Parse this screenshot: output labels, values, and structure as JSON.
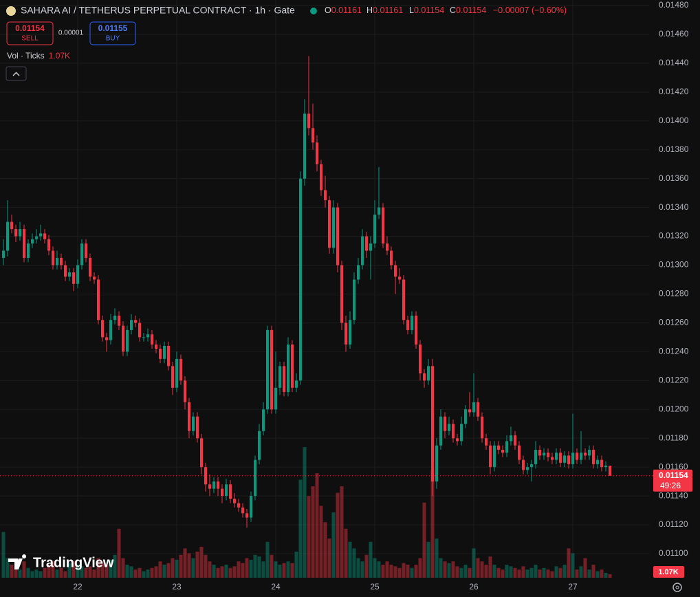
{
  "chart_data": {
    "type": "candlestick",
    "title": "SAHARA AI / TETHERUS PERPETUAL CONTRACT · 1h · Gate",
    "ohlc_keys": [
      "O",
      "H",
      "L",
      "C"
    ],
    "change": "−0.00007 (−0.60%)",
    "volume_title": "Vol · Ticks",
    "volume_label": "1.07K",
    "last_price": {
      "value": 0.01154,
      "label": "0.01154"
    },
    "countdown": "49:26",
    "up_color": "#089981",
    "down_color": "#f23645",
    "grid": true,
    "ylim": [
      0.010833,
      0.014838
    ],
    "yticks": [
      {
        "value": 0.0148,
        "label": "0.01480"
      },
      {
        "value": 0.0146,
        "label": "0.01460"
      },
      {
        "value": 0.0144,
        "label": "0.01440"
      },
      {
        "value": 0.0142,
        "label": "0.01420"
      },
      {
        "value": 0.014,
        "label": "0.01400"
      },
      {
        "value": 0.0138,
        "label": "0.01380"
      },
      {
        "value": 0.0136,
        "label": "0.01360"
      },
      {
        "value": 0.0134,
        "label": "0.01340"
      },
      {
        "value": 0.0132,
        "label": "0.01320"
      },
      {
        "value": 0.013,
        "label": "0.01300"
      },
      {
        "value": 0.0128,
        "label": "0.01280"
      },
      {
        "value": 0.0126,
        "label": "0.01260"
      },
      {
        "value": 0.0124,
        "label": "0.01240"
      },
      {
        "value": 0.0122,
        "label": "0.01220"
      },
      {
        "value": 0.012,
        "label": "0.01200"
      },
      {
        "value": 0.0118,
        "label": "0.01180"
      },
      {
        "value": 0.0116,
        "label": "0.01160"
      },
      {
        "value": 0.0114,
        "label": "0.01140"
      },
      {
        "value": 0.0112,
        "label": "0.01120"
      },
      {
        "value": 0.011,
        "label": "0.01100"
      }
    ],
    "categories": [
      null,
      null,
      null,
      null,
      null,
      null,
      null,
      null,
      null,
      null,
      null,
      null,
      null,
      null,
      null,
      null,
      null,
      null,
      "22",
      null,
      null,
      null,
      null,
      null,
      null,
      null,
      null,
      null,
      null,
      null,
      null,
      null,
      null,
      null,
      null,
      null,
      null,
      null,
      null,
      null,
      null,
      null,
      "23",
      null,
      null,
      null,
      null,
      null,
      null,
      null,
      null,
      null,
      null,
      null,
      null,
      null,
      null,
      null,
      null,
      null,
      null,
      null,
      null,
      null,
      null,
      null,
      "24",
      null,
      null,
      null,
      null,
      null,
      null,
      null,
      null,
      null,
      null,
      null,
      null,
      null,
      null,
      null,
      null,
      null,
      null,
      null,
      null,
      null,
      null,
      null,
      "25",
      null,
      null,
      null,
      null,
      null,
      null,
      null,
      null,
      null,
      null,
      null,
      null,
      null,
      null,
      null,
      null,
      null,
      null,
      null,
      null,
      null,
      null,
      null,
      "26",
      null,
      null,
      null,
      null,
      null,
      null,
      null,
      null,
      null,
      null,
      null,
      null,
      null,
      null,
      null,
      null,
      null,
      null,
      null,
      null,
      null,
      null,
      null,
      "27",
      null,
      null,
      null,
      null,
      null,
      null,
      null,
      null,
      null
    ],
    "candles": [
      [
        0.01305,
        0.01318,
        0.013,
        0.0131
      ],
      [
        0.0131,
        0.01345,
        0.01306,
        0.0133
      ],
      [
        0.0133,
        0.01335,
        0.01322,
        0.01325
      ],
      [
        0.01325,
        0.01328,
        0.01316,
        0.0132
      ],
      [
        0.0132,
        0.0133,
        0.01317,
        0.01325
      ],
      [
        0.01325,
        0.01328,
        0.01302,
        0.01305
      ],
      [
        0.01305,
        0.01318,
        0.01302,
        0.01315
      ],
      [
        0.01315,
        0.01322,
        0.01312,
        0.01318
      ],
      [
        0.01318,
        0.01325,
        0.01315,
        0.0132
      ],
      [
        0.0132,
        0.01328,
        0.01317,
        0.01322
      ],
      [
        0.01322,
        0.01325,
        0.01315,
        0.01318
      ],
      [
        0.01318,
        0.01321,
        0.01307,
        0.0131
      ],
      [
        0.0131,
        0.01313,
        0.01297,
        0.013
      ],
      [
        0.013,
        0.0131,
        0.01297,
        0.01305
      ],
      [
        0.01305,
        0.01308,
        0.01297,
        0.013
      ],
      [
        0.013,
        0.01303,
        0.01289,
        0.01292
      ],
      [
        0.01292,
        0.01298,
        0.01289,
        0.01295
      ],
      [
        0.01295,
        0.01298,
        0.01282,
        0.01287
      ],
      [
        0.01287,
        0.01304,
        0.01284,
        0.013
      ],
      [
        0.013,
        0.01318,
        0.01297,
        0.01315
      ],
      [
        0.01315,
        0.01318,
        0.01302,
        0.01305
      ],
      [
        0.01305,
        0.01308,
        0.01289,
        0.01292
      ],
      [
        0.01292,
        0.01295,
        0.01287,
        0.0129
      ],
      [
        0.0129,
        0.01293,
        0.01259,
        0.01262
      ],
      [
        0.01262,
        0.01265,
        0.01247,
        0.0125
      ],
      [
        0.0125,
        0.01253,
        0.0124,
        0.01248
      ],
      [
        0.01248,
        0.01266,
        0.01245,
        0.01262
      ],
      [
        0.01262,
        0.0127,
        0.01259,
        0.01265
      ],
      [
        0.01265,
        0.01268,
        0.01255,
        0.01258
      ],
      [
        0.01258,
        0.01261,
        0.01237,
        0.0124
      ],
      [
        0.0124,
        0.01258,
        0.01237,
        0.01255
      ],
      [
        0.01255,
        0.01266,
        0.01252,
        0.01262
      ],
      [
        0.01262,
        0.01265,
        0.01257,
        0.0126
      ],
      [
        0.0126,
        0.01263,
        0.01247,
        0.0125
      ],
      [
        0.0125,
        0.01253,
        0.01247,
        0.0125
      ],
      [
        0.0125,
        0.01256,
        0.01247,
        0.01252
      ],
      [
        0.01252,
        0.01255,
        0.01242,
        0.01245
      ],
      [
        0.01245,
        0.01248,
        0.01239,
        0.01242
      ],
      [
        0.01242,
        0.01245,
        0.01232,
        0.01235
      ],
      [
        0.01235,
        0.01247,
        0.01232,
        0.01244
      ],
      [
        0.01244,
        0.01247,
        0.01227,
        0.0123
      ],
      [
        0.0123,
        0.01233,
        0.0121,
        0.01215
      ],
      [
        0.01215,
        0.0124,
        0.01212,
        0.01235
      ],
      [
        0.01235,
        0.01238,
        0.01217,
        0.0122
      ],
      [
        0.0122,
        0.01223,
        0.012,
        0.01205
      ],
      [
        0.01205,
        0.01208,
        0.0118,
        0.01185
      ],
      [
        0.01185,
        0.01198,
        0.01182,
        0.01195
      ],
      [
        0.01195,
        0.01198,
        0.01177,
        0.0118
      ],
      [
        0.0118,
        0.01183,
        0.01155,
        0.0116
      ],
      [
        0.0116,
        0.01163,
        0.01143,
        0.01148
      ],
      [
        0.01148,
        0.01155,
        0.0114,
        0.01145
      ],
      [
        0.01145,
        0.01153,
        0.01142,
        0.0115
      ],
      [
        0.0115,
        0.01153,
        0.0114,
        0.01145
      ],
      [
        0.01145,
        0.01148,
        0.01135,
        0.0114
      ],
      [
        0.0114,
        0.01152,
        0.01137,
        0.01148
      ],
      [
        0.01148,
        0.01151,
        0.01135,
        0.01138
      ],
      [
        0.01138,
        0.01142,
        0.01132,
        0.01135
      ],
      [
        0.01135,
        0.01138,
        0.01129,
        0.01132
      ],
      [
        0.01132,
        0.01135,
        0.01125,
        0.01128
      ],
      [
        0.01128,
        0.01131,
        0.01118,
        0.01125
      ],
      [
        0.01125,
        0.01143,
        0.01122,
        0.0114
      ],
      [
        0.0114,
        0.01168,
        0.01137,
        0.01165
      ],
      [
        0.01165,
        0.0119,
        0.01162,
        0.01185
      ],
      [
        0.01185,
        0.01205,
        0.01182,
        0.012
      ],
      [
        0.012,
        0.01258,
        0.01197,
        0.01255
      ],
      [
        0.01255,
        0.01258,
        0.01197,
        0.012
      ],
      [
        0.012,
        0.0124,
        0.01197,
        0.01215
      ],
      [
        0.01215,
        0.01233,
        0.0121,
        0.0123
      ],
      [
        0.0123,
        0.01233,
        0.01209,
        0.01212
      ],
      [
        0.01212,
        0.0125,
        0.01209,
        0.01245
      ],
      [
        0.01245,
        0.01248,
        0.01212,
        0.01215
      ],
      [
        0.01215,
        0.01225,
        0.01212,
        0.0122
      ],
      [
        0.0122,
        0.01365,
        0.01217,
        0.0136
      ],
      [
        0.0136,
        0.01415,
        0.01355,
        0.01405
      ],
      [
        0.01405,
        0.01445,
        0.0139,
        0.01395
      ],
      [
        0.01395,
        0.01412,
        0.0138,
        0.01385
      ],
      [
        0.01385,
        0.0139,
        0.01365,
        0.0137
      ],
      [
        0.0137,
        0.01373,
        0.01348,
        0.01352
      ],
      [
        0.01352,
        0.01362,
        0.0134,
        0.01345
      ],
      [
        0.01345,
        0.01348,
        0.01308,
        0.01312
      ],
      [
        0.01312,
        0.01345,
        0.01308,
        0.0134
      ],
      [
        0.0134,
        0.01343,
        0.01295,
        0.013
      ],
      [
        0.013,
        0.01303,
        0.01255,
        0.0126
      ],
      [
        0.0126,
        0.01265,
        0.0124,
        0.01245
      ],
      [
        0.01245,
        0.01268,
        0.01242,
        0.01262
      ],
      [
        0.01262,
        0.01295,
        0.01259,
        0.0129
      ],
      [
        0.0129,
        0.01305,
        0.01287,
        0.013
      ],
      [
        0.013,
        0.01325,
        0.01297,
        0.0132
      ],
      [
        0.0132,
        0.01323,
        0.01305,
        0.0131
      ],
      [
        0.0131,
        0.0132,
        0.0129,
        0.01315
      ],
      [
        0.01315,
        0.01345,
        0.01312,
        0.01335
      ],
      [
        0.01335,
        0.01368,
        0.01332,
        0.0134
      ],
      [
        0.0134,
        0.01343,
        0.01312,
        0.01315
      ],
      [
        0.01315,
        0.0132,
        0.01307,
        0.0131
      ],
      [
        0.0131,
        0.01313,
        0.01297,
        0.013
      ],
      [
        0.013,
        0.01303,
        0.0128,
        0.01292
      ],
      [
        0.01292,
        0.01298,
        0.01287,
        0.0129
      ],
      [
        0.0129,
        0.01293,
        0.01259,
        0.01262
      ],
      [
        0.01262,
        0.01265,
        0.01252,
        0.01255
      ],
      [
        0.01255,
        0.01268,
        0.01252,
        0.01265
      ],
      [
        0.01265,
        0.01268,
        0.01242,
        0.01245
      ],
      [
        0.01245,
        0.01248,
        0.0122,
        0.01225
      ],
      [
        0.01225,
        0.01228,
        0.01215,
        0.0122
      ],
      [
        0.0122,
        0.01235,
        0.01217,
        0.0123
      ],
      [
        0.0123,
        0.01235,
        0.0114,
        0.0115
      ],
      [
        0.0115,
        0.0118,
        0.01145,
        0.01175
      ],
      [
        0.01175,
        0.012,
        0.01172,
        0.01195
      ],
      [
        0.01195,
        0.01198,
        0.0118,
        0.01185
      ],
      [
        0.01185,
        0.01195,
        0.01182,
        0.0119
      ],
      [
        0.0119,
        0.01193,
        0.01177,
        0.0118
      ],
      [
        0.0118,
        0.01183,
        0.01175,
        0.01178
      ],
      [
        0.01178,
        0.01195,
        0.01175,
        0.0119
      ],
      [
        0.0119,
        0.01203,
        0.01187,
        0.012
      ],
      [
        0.012,
        0.01212,
        0.01195,
        0.01198
      ],
      [
        0.01198,
        0.01225,
        0.01195,
        0.01205
      ],
      [
        0.01205,
        0.01208,
        0.01192,
        0.01195
      ],
      [
        0.01195,
        0.01198,
        0.01177,
        0.0118
      ],
      [
        0.0118,
        0.01183,
        0.01172,
        0.01175
      ],
      [
        0.01175,
        0.01178,
        0.01155,
        0.0116
      ],
      [
        0.0116,
        0.01178,
        0.01157,
        0.01175
      ],
      [
        0.01175,
        0.01178,
        0.01169,
        0.01172
      ],
      [
        0.01172,
        0.01175,
        0.01167,
        0.0117
      ],
      [
        0.0117,
        0.01182,
        0.01167,
        0.01178
      ],
      [
        0.01178,
        0.01188,
        0.01175,
        0.01182
      ],
      [
        0.01182,
        0.01185,
        0.01172,
        0.01175
      ],
      [
        0.01175,
        0.01178,
        0.01162,
        0.01165
      ],
      [
        0.01165,
        0.01168,
        0.01155,
        0.01158
      ],
      [
        0.01158,
        0.01163,
        0.01155,
        0.0116
      ],
      [
        0.0116,
        0.01165,
        0.0115,
        0.01162
      ],
      [
        0.01162,
        0.01178,
        0.01159,
        0.01172
      ],
      [
        0.01172,
        0.01175,
        0.01165,
        0.01168
      ],
      [
        0.01168,
        0.01173,
        0.01165,
        0.0117
      ],
      [
        0.0117,
        0.01173,
        0.01164,
        0.01167
      ],
      [
        0.01167,
        0.0117,
        0.01162,
        0.01165
      ],
      [
        0.01165,
        0.01173,
        0.01162,
        0.0117
      ],
      [
        0.0117,
        0.01173,
        0.0116,
        0.01163
      ],
      [
        0.01163,
        0.01171,
        0.0116,
        0.01168
      ],
      [
        0.01168,
        0.01171,
        0.01159,
        0.01162
      ],
      [
        0.01162,
        0.01197,
        0.01159,
        0.0117
      ],
      [
        0.0117,
        0.01173,
        0.01162,
        0.01165
      ],
      [
        0.01165,
        0.01185,
        0.01162,
        0.0117
      ],
      [
        0.0117,
        0.01173,
        0.01165,
        0.01168
      ],
      [
        0.01168,
        0.01175,
        0.01165,
        0.01172
      ],
      [
        0.01172,
        0.01175,
        0.01159,
        0.01162
      ],
      [
        0.01162,
        0.01168,
        0.01159,
        0.01165
      ],
      [
        0.01165,
        0.01168,
        0.01157,
        0.0116
      ],
      [
        0.0116,
        0.01164,
        0.01157,
        0.01161
      ],
      [
        0.01161,
        0.01161,
        0.01154,
        0.01154
      ]
    ],
    "volumes": [
      14000,
      6000,
      4000,
      3000,
      2500,
      5000,
      3000,
      2000,
      2500,
      2000,
      3000,
      4000,
      5000,
      2500,
      3000,
      2000,
      4500,
      5000,
      4000,
      3500,
      3000,
      3500,
      2500,
      6000,
      5000,
      4000,
      5500,
      7000,
      15000,
      6000,
      4000,
      3500,
      2500,
      3000,
      2000,
      2500,
      3000,
      3500,
      5000,
      4000,
      4500,
      6000,
      5500,
      7000,
      9000,
      7500,
      6000,
      8000,
      9500,
      7000,
      5000,
      4000,
      3000,
      3500,
      4000,
      3000,
      3500,
      5000,
      4500,
      6000,
      5500,
      7000,
      6500,
      5000,
      11000,
      7000,
      5000,
      4000,
      4500,
      5000,
      4500,
      8000,
      30000,
      40000,
      25000,
      28000,
      32000,
      22000,
      17000,
      12000,
      20000,
      26000,
      28000,
      15000,
      11000,
      9000,
      6000,
      5000,
      7000,
      11000,
      6000,
      5000,
      4000,
      5000,
      4000,
      3500,
      3000,
      4500,
      4000,
      3000,
      4000,
      6000,
      23000,
      11000,
      33000,
      12000,
      6000,
      5000,
      4500,
      5000,
      3500,
      3000,
      4000,
      3000,
      9000,
      6000,
      5000,
      4000,
      6500,
      4000,
      3000,
      2500,
      4000,
      3500,
      3000,
      2500,
      3500,
      2500,
      3000,
      4000,
      2500,
      3000,
      2500,
      2000,
      3500,
      3000,
      4000,
      9000,
      7500,
      2500,
      3500,
      6000,
      2500,
      4000,
      2000,
      2500,
      1500,
      1070
    ]
  },
  "ui": {
    "sell_price": "0.01154",
    "sell": "SELL",
    "spread": "0.00001",
    "buy_price": "0.01155",
    "buy": "BUY",
    "watermark": "TradingView"
  }
}
